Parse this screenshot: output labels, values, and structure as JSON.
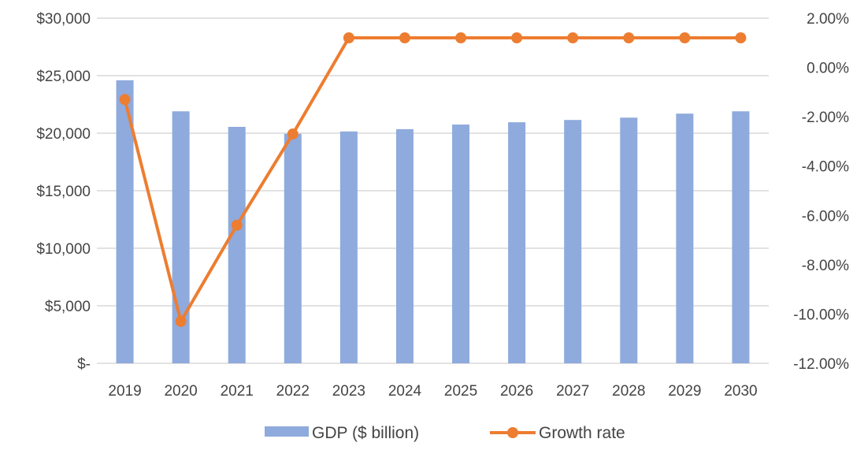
{
  "chart_data": {
    "type": "bar",
    "title": "",
    "xlabel": "",
    "ylabel": "",
    "categories": [
      "2019",
      "2020",
      "2021",
      "2022",
      "2023",
      "2024",
      "2025",
      "2026",
      "2027",
      "2028",
      "2029",
      "2030"
    ],
    "series": [
      {
        "name": "GDP ($ billion)",
        "type": "bar",
        "axis": "left",
        "color": "#8faadc",
        "values": [
          24600,
          21900,
          20550,
          19950,
          20150,
          20350,
          20750,
          20950,
          21150,
          21350,
          21700,
          21900
        ]
      },
      {
        "name": "Growth rate",
        "type": "line",
        "axis": "right",
        "color": "#ed7d31",
        "values": [
          -1.3,
          -10.3,
          -6.4,
          -2.7,
          1.2,
          1.2,
          1.2,
          1.2,
          1.2,
          1.2,
          1.2,
          1.2
        ]
      }
    ],
    "y_left": {
      "ylim": [
        0,
        30000
      ],
      "tick_values": [
        0,
        5000,
        10000,
        15000,
        20000,
        25000,
        30000
      ],
      "tick_labels": [
        "$-",
        "$5,000",
        "$10,000",
        "$15,000",
        "$20,000",
        "$25,000",
        "$30,000"
      ]
    },
    "y_right": {
      "ylim": [
        -12,
        2
      ],
      "tick_values": [
        -12,
        -10,
        -8,
        -6,
        -4,
        -2,
        0,
        2
      ],
      "tick_labels": [
        "-12.00%",
        "-10.00%",
        "-8.00%",
        "-6.00%",
        "-4.00%",
        "-2.00%",
        "0.00%",
        "2.00%"
      ]
    },
    "grid": true,
    "gridline_color": "#d9d9d9",
    "legend_position": "bottom"
  }
}
